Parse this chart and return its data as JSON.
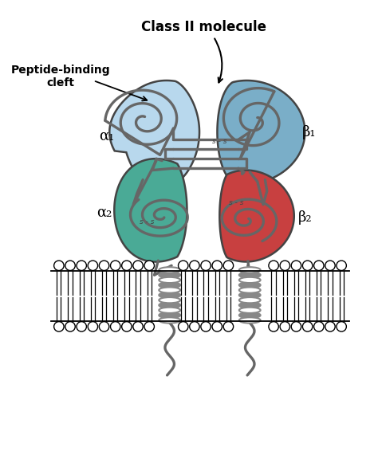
{
  "title": "Class II molecule",
  "label_peptide_binding": "Peptide-binding\ncleft",
  "label_alpha1": "α₁",
  "label_beta1": "β₁",
  "label_alpha2": "α₂",
  "label_beta2": "β₂",
  "color_alpha1": "#b8d8ed",
  "color_beta1": "#7aaec8",
  "color_alpha2": "#4aaa96",
  "color_beta2": "#c84040",
  "color_chain": "#666666",
  "color_outline": "#444444",
  "bg_color": "#ffffff",
  "fig_width": 4.74,
  "fig_height": 5.66
}
